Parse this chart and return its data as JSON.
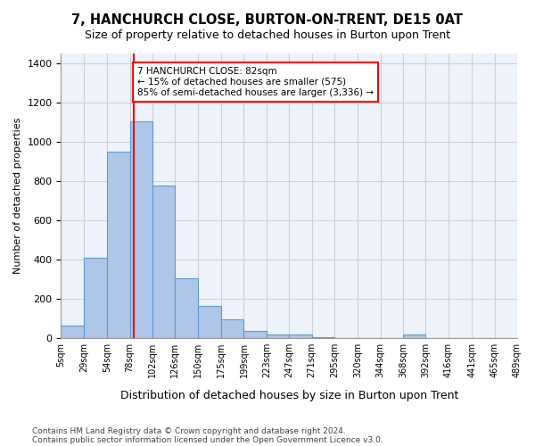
{
  "title": "7, HANCHURCH CLOSE, BURTON-ON-TRENT, DE15 0AT",
  "subtitle": "Size of property relative to detached houses in Burton upon Trent",
  "xlabel": "Distribution of detached houses by size in Burton upon Trent",
  "ylabel": "Number of detached properties",
  "footer1": "Contains HM Land Registry data © Crown copyright and database right 2024.",
  "footer2": "Contains public sector information licensed under the Open Government Licence v3.0.",
  "bar_color": "#aec6e8",
  "bar_edge_color": "#5b9bd5",
  "grid_color": "#d0d0d0",
  "bg_color": "#eef2fb",
  "vline_x": 82,
  "vline_color": "red",
  "annotation_text": "7 HANCHURCH CLOSE: 82sqm\n← 15% of detached houses are smaller (575)\n85% of semi-detached houses are larger (3,336) →",
  "bins": [
    5,
    29,
    54,
    78,
    102,
    126,
    150,
    175,
    199,
    223,
    247,
    271,
    295,
    320,
    344,
    368,
    392,
    416,
    441,
    465,
    489
  ],
  "bin_labels": [
    "5sqm",
    "29sqm",
    "54sqm",
    "78sqm",
    "102sqm",
    "126sqm",
    "150sqm",
    "175sqm",
    "199sqm",
    "223sqm",
    "247sqm",
    "271sqm",
    "295sqm",
    "320sqm",
    "344sqm",
    "368sqm",
    "392sqm",
    "416sqm",
    "441sqm",
    "465sqm",
    "489sqm"
  ],
  "bar_heights": [
    65,
    410,
    950,
    1105,
    775,
    305,
    163,
    97,
    35,
    18,
    18,
    5,
    0,
    0,
    0,
    18,
    0,
    0,
    0,
    0
  ],
  "ylim": [
    0,
    1450
  ],
  "yticks": [
    0,
    200,
    400,
    600,
    800,
    1000,
    1200,
    1400
  ]
}
